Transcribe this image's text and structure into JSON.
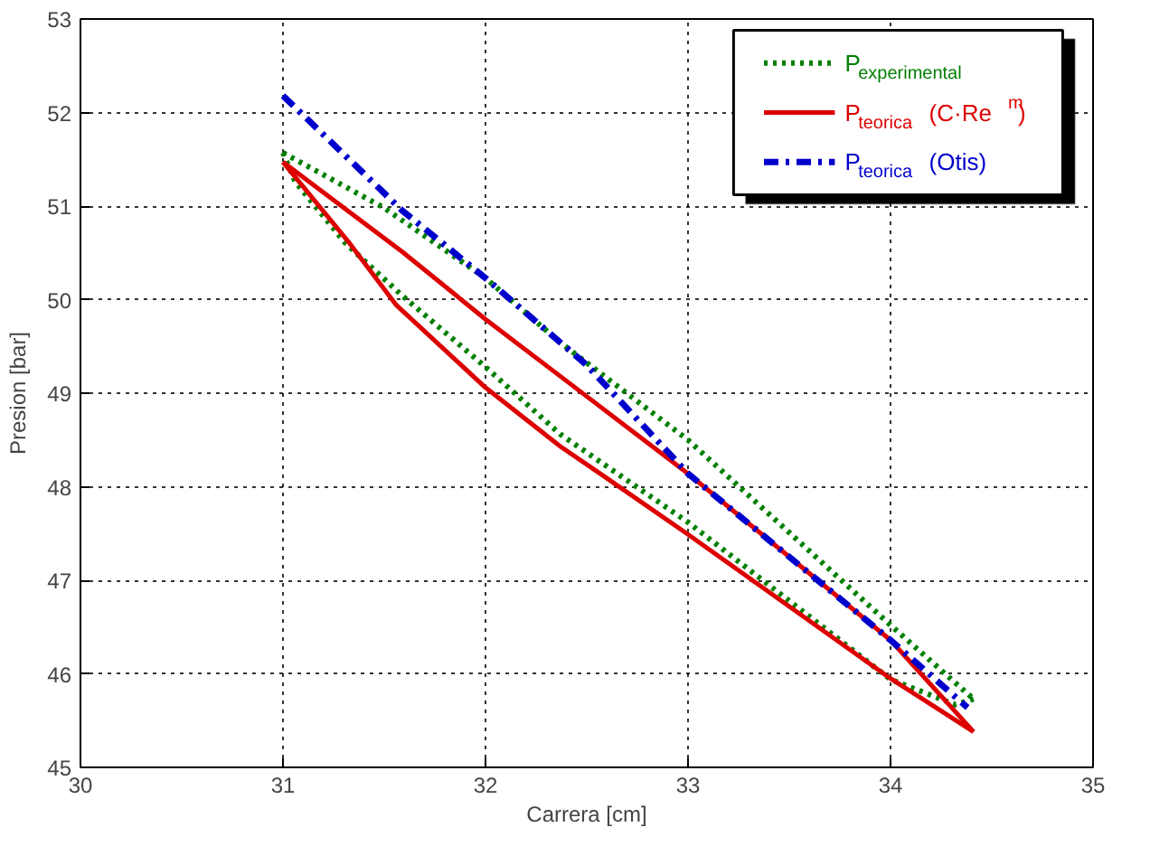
{
  "chart_data": {
    "type": "line",
    "xlabel": "Carrera [cm]",
    "ylabel": "Presion [bar]",
    "xlim": [
      30,
      35
    ],
    "xticks": [
      30,
      31,
      32,
      33,
      34,
      35
    ],
    "ylim": [
      45,
      53
    ],
    "yticks": [
      45,
      46,
      47,
      48,
      49,
      50,
      51,
      52,
      53
    ],
    "grid": true,
    "legend": "top right",
    "series": [
      {
        "name": "P$_{experimental}$",
        "color": "#008000",
        "line_style": "dotted",
        "x": [
          31.0,
          31.5,
          32.0,
          32.37,
          33.0,
          34.0,
          34.41
        ],
        "values": [
          51.57,
          50.98,
          50.23,
          49.54,
          48.5,
          46.52,
          45.73
        ]
      },
      {
        "color": "#008000",
        "line_style": "dotted",
        "x": [
          31.0,
          31.06,
          31.31,
          31.59,
          32.0,
          32.37,
          33.0,
          34.0,
          34.32,
          34.41
        ],
        "values": [
          51.57,
          51.26,
          50.6,
          50.04,
          49.28,
          48.56,
          47.62,
          45.94,
          45.67,
          45.73
        ]
      },
      {
        "name": "P$_{teorica}$ (C·Re$^{m}$)",
        "color": "#dd0000",
        "line_style": "solid",
        "x": [
          31.0,
          31.59,
          32.0,
          32.37,
          33.0,
          34.0,
          34.41
        ],
        "values": [
          51.47,
          50.51,
          49.79,
          49.18,
          48.14,
          46.36,
          45.38
        ]
      },
      {
        "color": "#dd0000",
        "line_style": "solid",
        "x": [
          31.0,
          31.33,
          31.56,
          32.0,
          32.37,
          32.58,
          33.0,
          34.0,
          34.41
        ],
        "values": [
          51.47,
          50.6,
          49.94,
          49.06,
          48.43,
          48.12,
          47.49,
          45.95,
          45.38
        ]
      },
      {
        "name": "P$_{teorica}$ (Otis)",
        "color": "#0000cc",
        "line_style": "dashdot",
        "x": [
          31.0,
          31.59,
          32.0,
          32.5,
          33.0,
          33.5,
          34.0,
          34.38
        ],
        "values": [
          52.18,
          50.95,
          50.23,
          49.3,
          48.14,
          47.25,
          46.36,
          45.64
        ]
      }
    ]
  }
}
